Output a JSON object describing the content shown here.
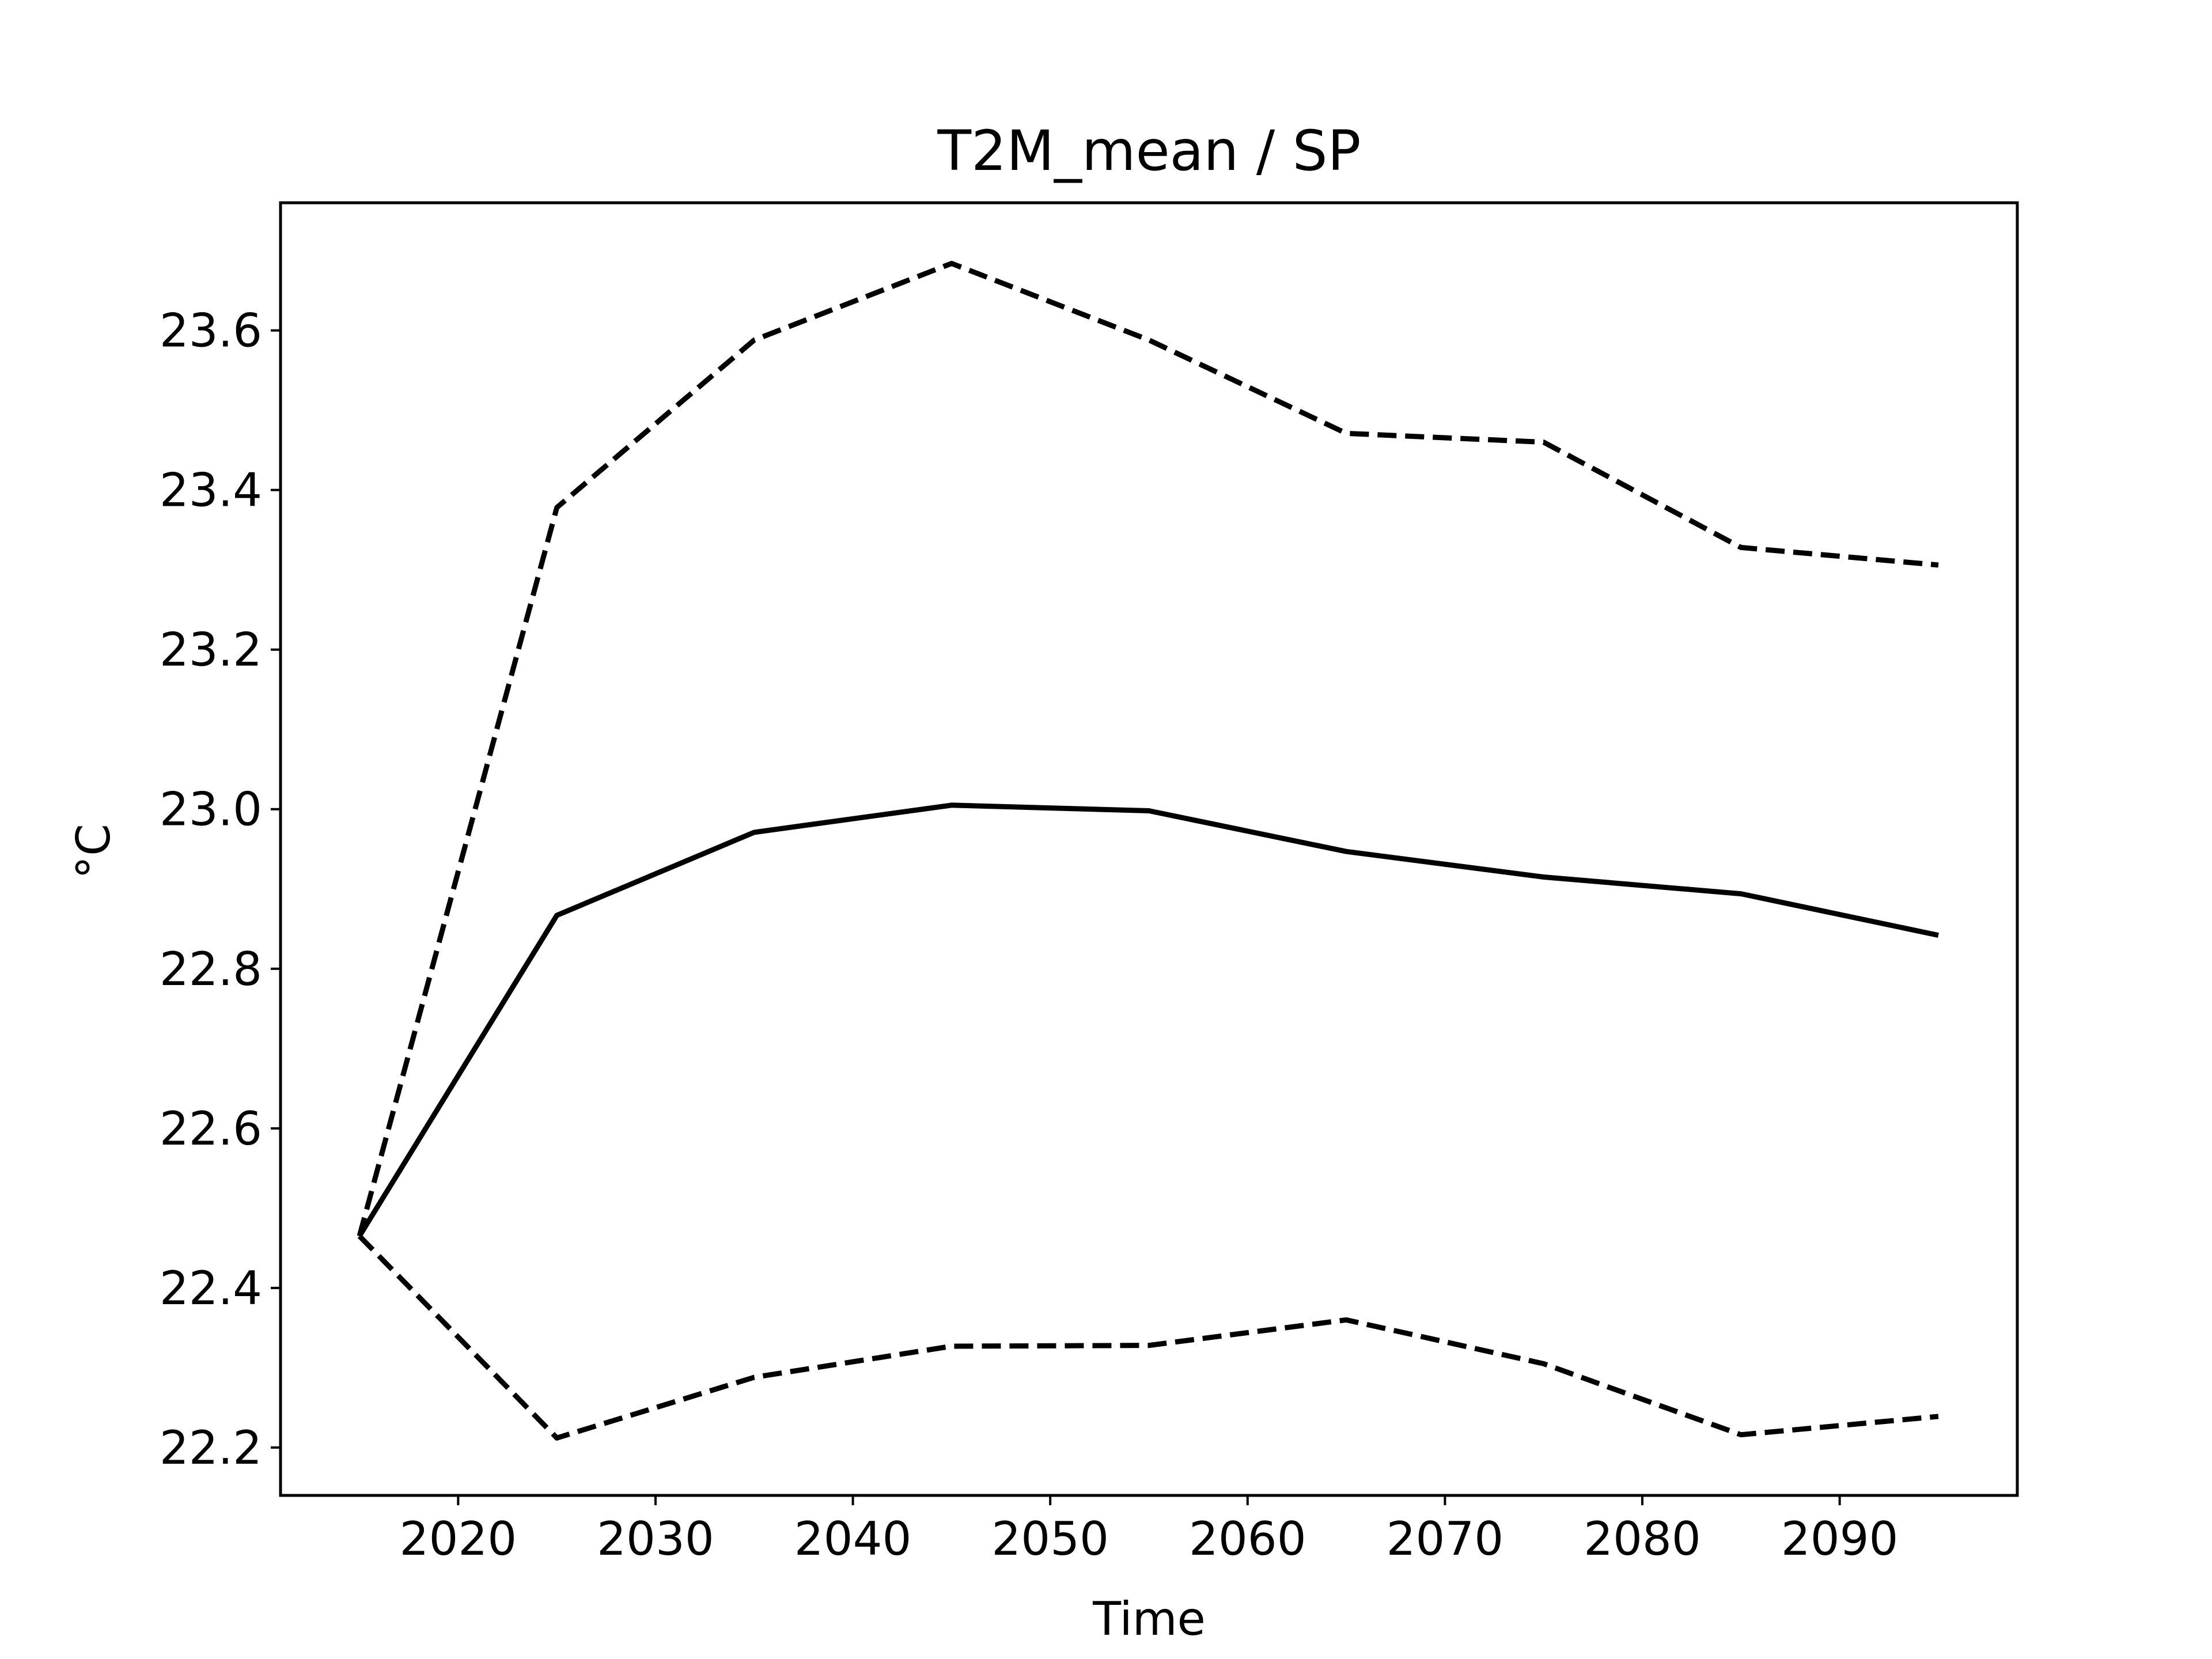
{
  "chart_data": {
    "type": "line",
    "title": "T2M_mean / SP",
    "xlabel": "Time",
    "ylabel": "°C",
    "xlim": [
      2011,
      2099
    ],
    "ylim": [
      22.14,
      23.76
    ],
    "xticks": [
      2020,
      2030,
      2040,
      2050,
      2060,
      2070,
      2080,
      2090
    ],
    "yticks": [
      22.2,
      22.4,
      22.6,
      22.8,
      23.0,
      23.2,
      23.4,
      23.6
    ],
    "ytick_labels": [
      "22.2",
      "22.4",
      "22.6",
      "22.8",
      "23.0",
      "23.2",
      "23.4",
      "23.6"
    ],
    "grid": false,
    "x": [
      2015,
      2025,
      2035,
      2045,
      2055,
      2065,
      2075,
      2085,
      2095
    ],
    "series": [
      {
        "style": "solid",
        "color": "#000000",
        "values": [
          22.465,
          22.867,
          22.971,
          23.005,
          22.998,
          22.947,
          22.915,
          22.894,
          22.842
        ]
      },
      {
        "style": "dashed",
        "color": "#000000",
        "values": [
          22.465,
          23.378,
          23.588,
          23.684,
          23.588,
          23.471,
          23.46,
          23.328,
          23.306
        ]
      },
      {
        "style": "dashed",
        "color": "#000000",
        "values": [
          22.465,
          22.212,
          22.288,
          22.327,
          22.328,
          22.36,
          22.305,
          22.216,
          22.239
        ]
      }
    ]
  }
}
